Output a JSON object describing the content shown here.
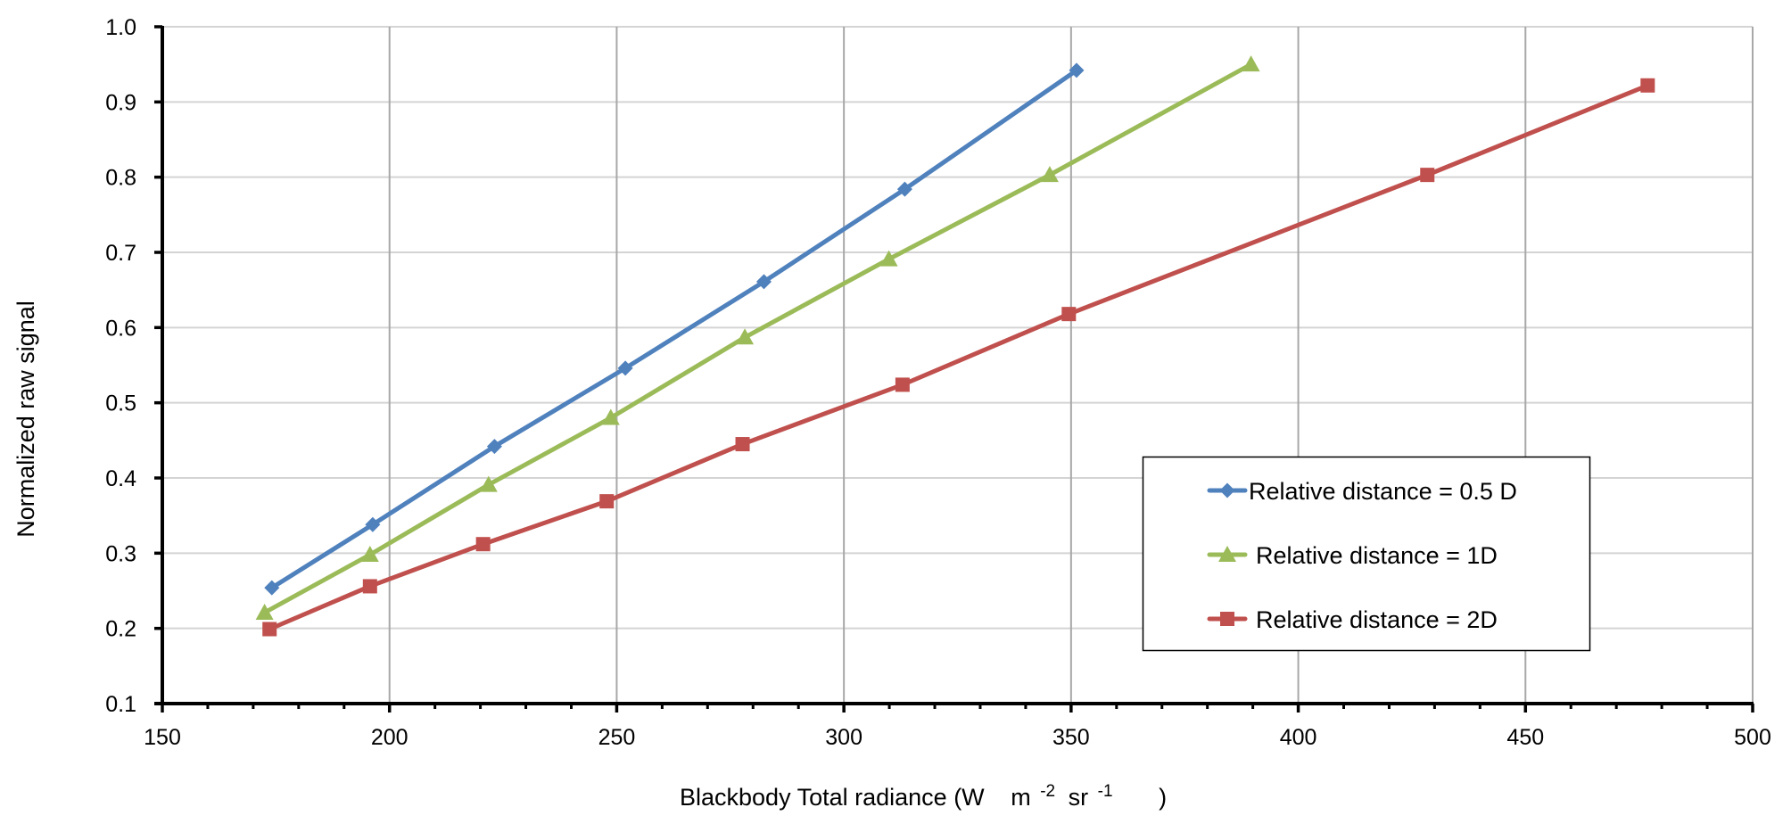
{
  "chart_data": {
    "type": "line",
    "title": "",
    "xlabel": {
      "text": "Blackbody Total radiance (W",
      "unit_m": "m",
      "unit_m_exp": "-2",
      "unit_sr": "sr",
      "unit_sr_exp": "-1",
      "close": ")"
    },
    "ylabel": "Normalized raw signal",
    "xlim": [
      150,
      500
    ],
    "ylim": [
      0.1,
      1.0
    ],
    "x_major_step": 50,
    "x_minor_step": 10,
    "y_major_step": 0.1,
    "x_tick_labels": [
      "150",
      "200",
      "250",
      "300",
      "350",
      "400",
      "450",
      "500"
    ],
    "y_tick_labels": [
      "0.1",
      "0.2",
      "0.3",
      "0.4",
      "0.5",
      "0.6",
      "0.7",
      "0.8",
      "0.9",
      "1.0"
    ],
    "grid": true,
    "legend_position": "center-right",
    "series": [
      {
        "name": "Relative distance = 0.5 D",
        "color": "#4F81BD",
        "marker": "diamond",
        "x": [
          174.1,
          196.3,
          223.1,
          251.9,
          282.4,
          313.4,
          351.2
        ],
        "y": [
          0.254,
          0.338,
          0.442,
          0.546,
          0.661,
          0.784,
          0.942
        ]
      },
      {
        "name": "Relative distance = 1D",
        "color": "#9BBB59",
        "marker": "triangle",
        "x": [
          172.5,
          195.7,
          221.8,
          248.7,
          278.2,
          309.9,
          345.3,
          389.6
        ],
        "y": [
          0.221,
          0.298,
          0.391,
          0.48,
          0.587,
          0.691,
          0.803,
          0.95
        ]
      },
      {
        "name": "Relative distance = 2D",
        "color": "#C0504D",
        "marker": "square",
        "x": [
          173.6,
          195.7,
          220.6,
          247.8,
          277.7,
          312.9,
          349.5,
          428.4,
          476.9
        ],
        "y": [
          0.199,
          0.256,
          0.312,
          0.369,
          0.445,
          0.524,
          0.618,
          0.803,
          0.922
        ]
      }
    ]
  }
}
